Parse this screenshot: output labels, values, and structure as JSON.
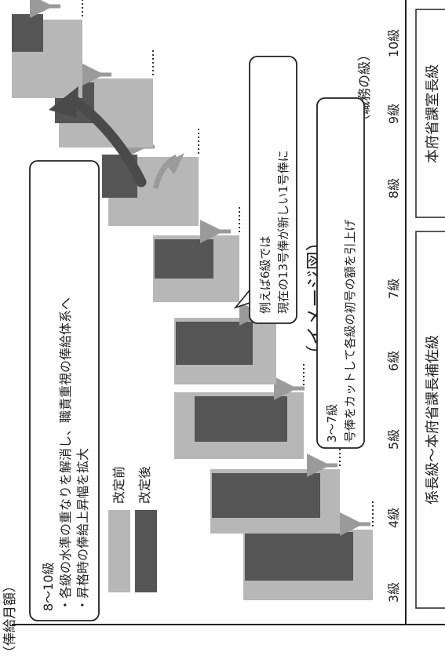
{
  "title_partial": "（イメージ図）",
  "y_axis_label": "（俸給月額）",
  "x_axis_label": "（職務の級）",
  "legend": {
    "before_label": "改定前",
    "after_label": "改定後",
    "before_color": "#b7b7b7",
    "after_color": "#555555"
  },
  "grades": [
    "3級",
    "4級",
    "5級",
    "6級",
    "7級",
    "8級",
    "9級",
    "10級"
  ],
  "note_8_10": {
    "line1": "8～10級",
    "line2": "・各級の水準の重なりを解消し、職責重視の俸給体系へ",
    "line3": "・昇格時の俸給上昇幅を拡大"
  },
  "note_3_7": {
    "line1": "3～7級",
    "line2": "号俸をカットして各級の初号の額を引上げ"
  },
  "note_example": {
    "line1": "例えば6級では",
    "line2": "現在の13号俸が新しい1号俸に"
  },
  "category_lower": "係長級～本府省課長補佐級",
  "category_upper": "本府省課室長級"
}
